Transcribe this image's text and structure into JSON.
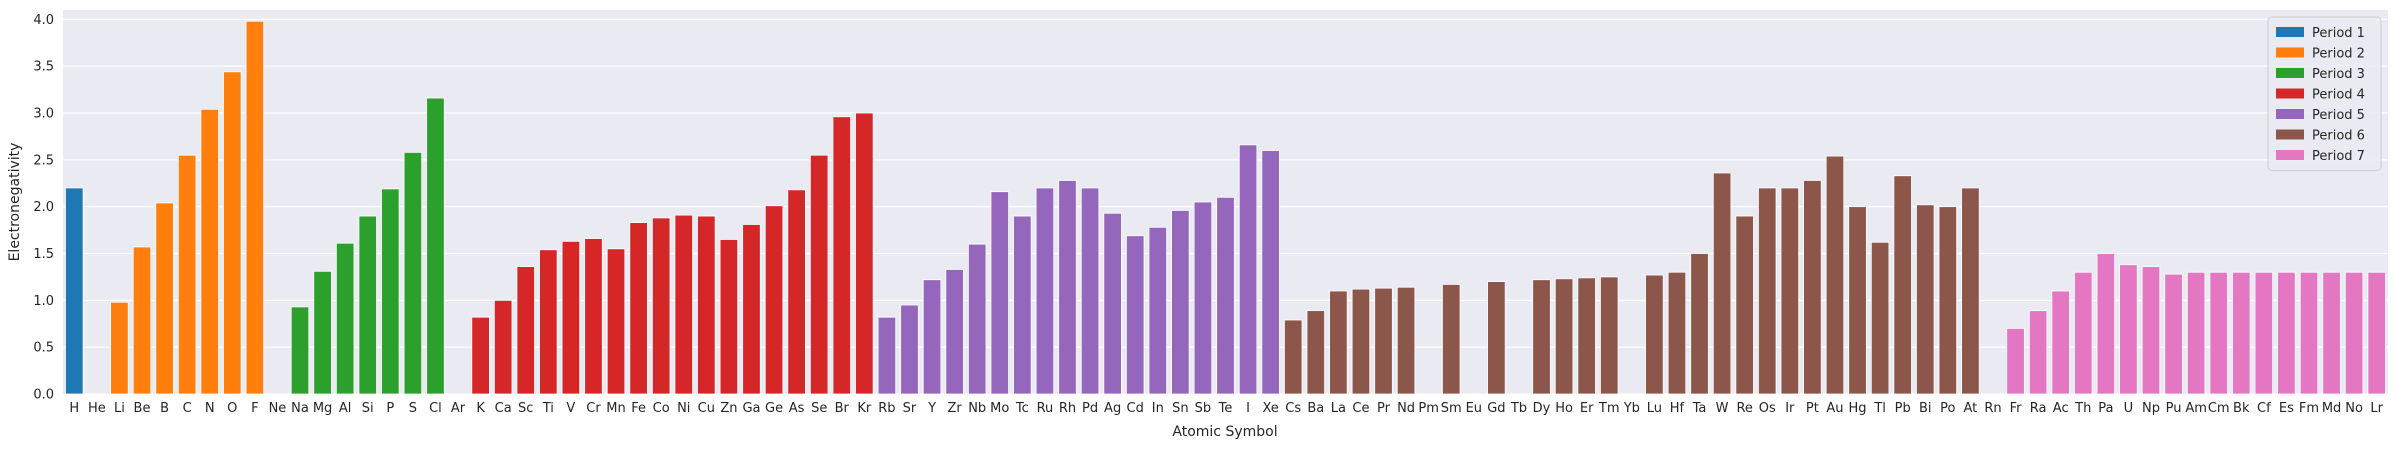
{
  "chart_data": {
    "type": "bar",
    "title": "",
    "xlabel": "Atomic Symbol",
    "ylabel": "Electronegativity",
    "ylim": [
      0,
      4.1
    ],
    "y_ticks": [
      "0.0",
      "0.5",
      "1.0",
      "1.5",
      "2.0",
      "2.5",
      "3.0",
      "3.5",
      "4.0"
    ],
    "grid": true,
    "legend_position": "top-right",
    "categories": [
      "H",
      "He",
      "Li",
      "Be",
      "B",
      "C",
      "N",
      "O",
      "F",
      "Ne",
      "Na",
      "Mg",
      "Al",
      "Si",
      "P",
      "S",
      "Cl",
      "Ar",
      "K",
      "Ca",
      "Sc",
      "Ti",
      "V",
      "Cr",
      "Mn",
      "Fe",
      "Co",
      "Ni",
      "Cu",
      "Zn",
      "Ga",
      "Ge",
      "As",
      "Se",
      "Br",
      "Kr",
      "Rb",
      "Sr",
      "Y",
      "Zr",
      "Nb",
      "Mo",
      "Tc",
      "Ru",
      "Rh",
      "Pd",
      "Ag",
      "Cd",
      "In",
      "Sn",
      "Sb",
      "Te",
      "I",
      "Xe",
      "Cs",
      "Ba",
      "La",
      "Ce",
      "Pr",
      "Nd",
      "Pm",
      "Sm",
      "Eu",
      "Gd",
      "Tb",
      "Dy",
      "Ho",
      "Er",
      "Tm",
      "Yb",
      "Lu",
      "Hf",
      "Ta",
      "W",
      "Re",
      "Os",
      "Ir",
      "Pt",
      "Au",
      "Hg",
      "Tl",
      "Pb",
      "Bi",
      "Po",
      "At",
      "Rn",
      "Fr",
      "Ra",
      "Ac",
      "Th",
      "Pa",
      "U",
      "Np",
      "Pu",
      "Am",
      "Cm",
      "Bk",
      "Cf",
      "Es",
      "Fm",
      "Md",
      "No",
      "Lr"
    ],
    "values": [
      2.2,
      null,
      0.98,
      1.57,
      2.04,
      2.55,
      3.04,
      3.44,
      3.98,
      null,
      0.93,
      1.31,
      1.61,
      1.9,
      2.19,
      2.58,
      3.16,
      null,
      0.82,
      1.0,
      1.36,
      1.54,
      1.63,
      1.66,
      1.55,
      1.83,
      1.88,
      1.91,
      1.9,
      1.65,
      1.81,
      2.01,
      2.18,
      2.55,
      2.96,
      3.0,
      0.82,
      0.95,
      1.22,
      1.33,
      1.6,
      2.16,
      1.9,
      2.2,
      2.28,
      2.2,
      1.93,
      1.69,
      1.78,
      1.96,
      2.05,
      2.1,
      2.66,
      2.6,
      0.79,
      0.89,
      1.1,
      1.12,
      1.13,
      1.14,
      null,
      1.17,
      null,
      1.2,
      null,
      1.22,
      1.23,
      1.24,
      1.25,
      null,
      1.27,
      1.3,
      1.5,
      2.36,
      1.9,
      2.2,
      2.2,
      2.28,
      2.54,
      2.0,
      1.62,
      2.33,
      2.02,
      2.0,
      2.2,
      null,
      0.7,
      0.89,
      1.1,
      1.3,
      1.5,
      1.38,
      1.36,
      1.28,
      1.3,
      1.3,
      1.3,
      1.3,
      1.3,
      1.3,
      1.3,
      1.3,
      1.3
    ],
    "period": [
      1,
      1,
      2,
      2,
      2,
      2,
      2,
      2,
      2,
      2,
      3,
      3,
      3,
      3,
      3,
      3,
      3,
      3,
      4,
      4,
      4,
      4,
      4,
      4,
      4,
      4,
      4,
      4,
      4,
      4,
      4,
      4,
      4,
      4,
      4,
      4,
      5,
      5,
      5,
      5,
      5,
      5,
      5,
      5,
      5,
      5,
      5,
      5,
      5,
      5,
      5,
      5,
      5,
      5,
      6,
      6,
      6,
      6,
      6,
      6,
      6,
      6,
      6,
      6,
      6,
      6,
      6,
      6,
      6,
      6,
      6,
      6,
      6,
      6,
      6,
      6,
      6,
      6,
      6,
      6,
      6,
      6,
      6,
      6,
      6,
      6,
      7,
      7,
      7,
      7,
      7,
      7,
      7,
      7,
      7,
      7,
      7,
      7,
      7,
      7,
      7,
      7,
      7
    ],
    "series": [
      {
        "name": "Period 1",
        "color": "#1f77b4"
      },
      {
        "name": "Period 2",
        "color": "#ff7f0e"
      },
      {
        "name": "Period 3",
        "color": "#2ca02c"
      },
      {
        "name": "Period 4",
        "color": "#d62728"
      },
      {
        "name": "Period 5",
        "color": "#9467bd"
      },
      {
        "name": "Period 6",
        "color": "#8c564b"
      },
      {
        "name": "Period 7",
        "color": "#e377c2"
      }
    ],
    "colors": {
      "plot_background": "#eaeaf2",
      "grid": "#ffffff"
    }
  }
}
